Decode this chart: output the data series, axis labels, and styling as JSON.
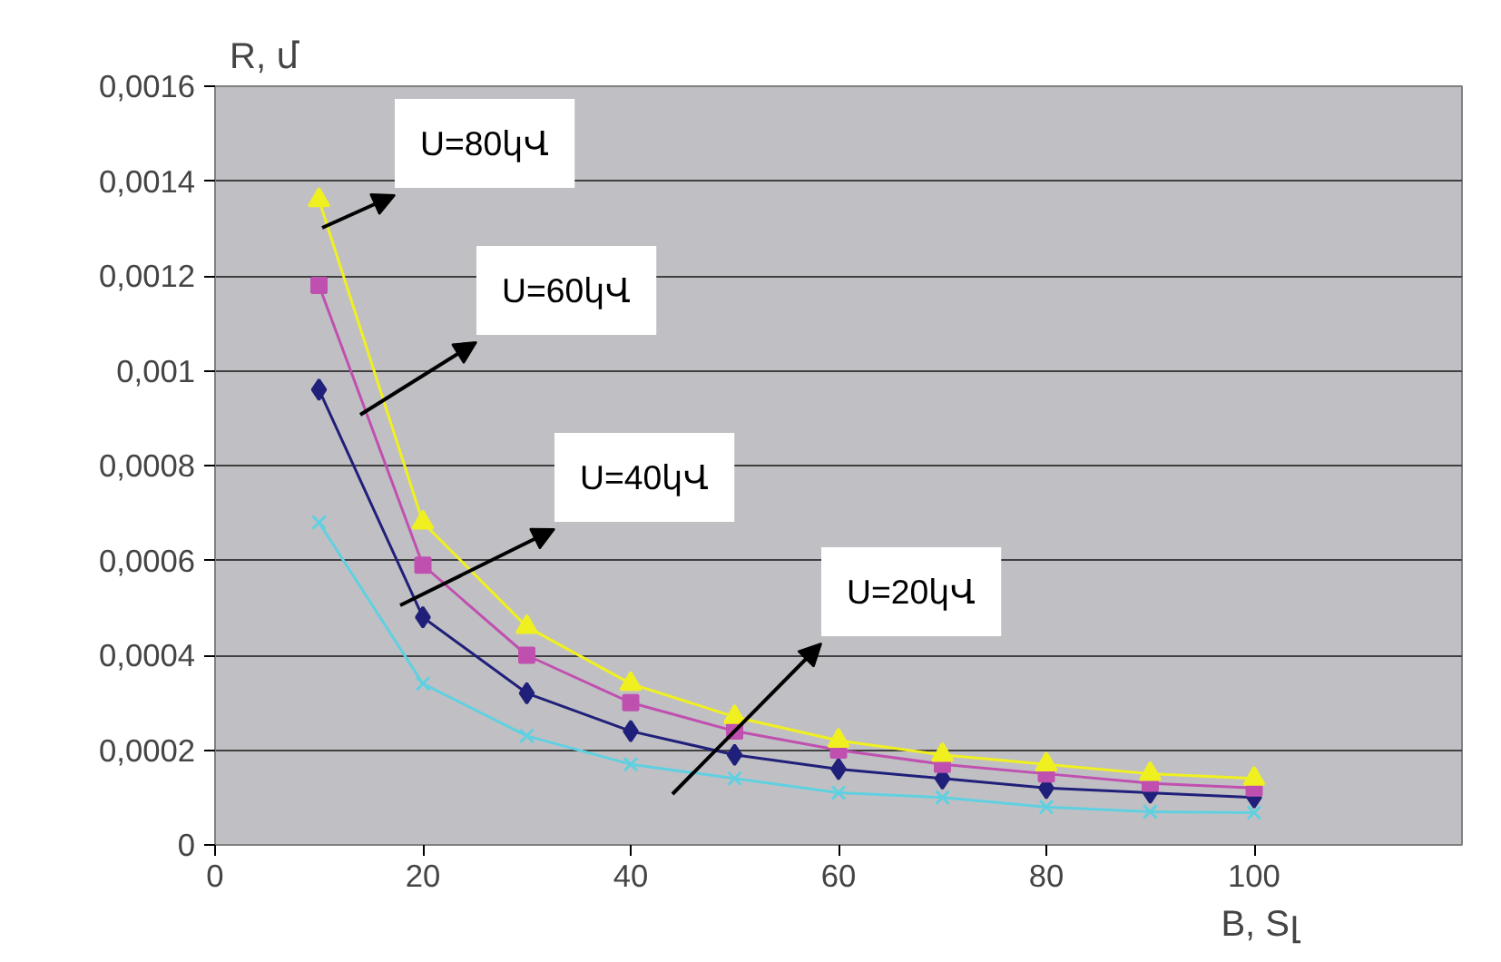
{
  "chart_data": {
    "type": "line",
    "xlabel": "B, Sլ",
    "ylabel": "R, մ",
    "x": [
      10,
      20,
      30,
      40,
      50,
      60,
      70,
      80,
      90,
      100
    ],
    "series": [
      {
        "color": "#f0f020",
        "marker": "triangle",
        "values": [
          0.00136,
          0.00068,
          0.00046,
          0.00034,
          0.00027,
          0.00022,
          0.00019,
          0.00017,
          0.00015,
          0.00014
        ]
      },
      {
        "color": "#c050b0",
        "marker": "square",
        "values": [
          0.00118,
          0.00059,
          0.0004,
          0.0003,
          0.00024,
          0.0002,
          0.00017,
          0.00015,
          0.00013,
          0.00012
        ]
      },
      {
        "color": "#20207a",
        "marker": "diamond",
        "values": [
          0.00096,
          0.00048,
          0.00032,
          0.00024,
          0.00019,
          0.00016,
          0.00014,
          0.00012,
          0.00011,
          0.0001
        ]
      },
      {
        "color": "#60d0e0",
        "marker": "cross",
        "values": [
          0.00068,
          0.00034,
          0.00023,
          0.00017,
          0.00014,
          0.00011,
          0.0001,
          8e-05,
          7e-05,
          6.8e-05
        ]
      }
    ],
    "annotations": [
      "U=80կՎ",
      "U=60կՎ",
      "U=40կՎ",
      "U=20կՎ"
    ],
    "xlim": [
      0,
      120
    ],
    "xticks": [
      0,
      20,
      40,
      60,
      80,
      100
    ],
    "ylim": [
      0,
      0.0016
    ],
    "yticks": [
      0,
      {
        "value": 0.0002,
        "label": "0,0002"
      },
      {
        "value": 0.0004,
        "label": "0,0004"
      },
      {
        "value": 0.0006,
        "label": "0,0006"
      },
      {
        "value": 0.0008,
        "label": "0,0008"
      },
      {
        "value": 0.001,
        "label": "0,001"
      },
      {
        "value": 0.0012,
        "label": "0,0012"
      },
      {
        "value": 0.0014,
        "label": "0,0014"
      },
      {
        "value": 0.0016,
        "label": "0,0016"
      }
    ],
    "grid": "y"
  }
}
